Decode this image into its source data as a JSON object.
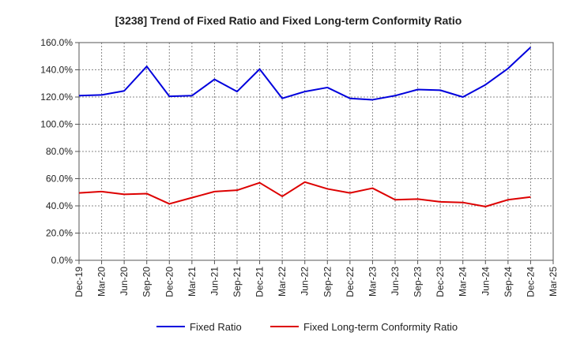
{
  "chart_data": {
    "type": "line",
    "title": "[3238]  Trend of Fixed Ratio and Fixed Long-term Conformity Ratio",
    "xlabel": "",
    "ylabel": "",
    "x_ticks": [
      "Dec-19",
      "Mar-20",
      "Jun-20",
      "Sep-20",
      "Dec-20",
      "Mar-21",
      "Jun-21",
      "Sep-21",
      "Dec-21",
      "Mar-22",
      "Jun-22",
      "Sep-22",
      "Dec-22",
      "Mar-23",
      "Jun-23",
      "Sep-23",
      "Dec-23",
      "Mar-24",
      "Jun-24",
      "Sep-24",
      "Dec-24",
      "Mar-25"
    ],
    "y_ticks": [
      "0.0%",
      "20.0%",
      "40.0%",
      "60.0%",
      "80.0%",
      "100.0%",
      "120.0%",
      "140.0%",
      "160.0%"
    ],
    "ylim": [
      0,
      160
    ],
    "y_unit": "%",
    "grid": true,
    "legend_position": "bottom",
    "series": [
      {
        "name": "Fixed Ratio",
        "color": "#0000dd",
        "x": [
          "Dec-19",
          "Mar-20",
          "Jun-20",
          "Sep-20",
          "Dec-20",
          "Mar-21",
          "Jun-21",
          "Sep-21",
          "Dec-21",
          "Mar-22",
          "Jun-22",
          "Sep-22",
          "Dec-22",
          "Mar-23",
          "Jun-23",
          "Sep-23",
          "Dec-23",
          "Mar-24",
          "Jun-24",
          "Sep-24",
          "Dec-24"
        ],
        "values": [
          121.0,
          121.5,
          124.5,
          142.5,
          120.5,
          121.0,
          133.0,
          124.0,
          140.5,
          119.0,
          124.0,
          127.0,
          119.0,
          118.0,
          121.0,
          125.5,
          125.0,
          120.0,
          129.0,
          141.0,
          156.5
        ]
      },
      {
        "name": "Fixed Long-term Conformity Ratio",
        "color": "#dd0000",
        "x": [
          "Dec-19",
          "Mar-20",
          "Jun-20",
          "Sep-20",
          "Dec-20",
          "Mar-21",
          "Jun-21",
          "Sep-21",
          "Dec-21",
          "Mar-22",
          "Jun-22",
          "Sep-22",
          "Dec-22",
          "Mar-23",
          "Jun-23",
          "Sep-23",
          "Dec-23",
          "Mar-24",
          "Jun-24",
          "Sep-24",
          "Dec-24"
        ],
        "values": [
          49.5,
          50.5,
          48.5,
          49.0,
          41.5,
          46.0,
          50.5,
          51.5,
          57.0,
          47.0,
          57.5,
          52.5,
          49.5,
          53.0,
          44.5,
          45.0,
          43.0,
          42.5,
          39.5,
          44.5,
          46.5
        ]
      }
    ]
  }
}
